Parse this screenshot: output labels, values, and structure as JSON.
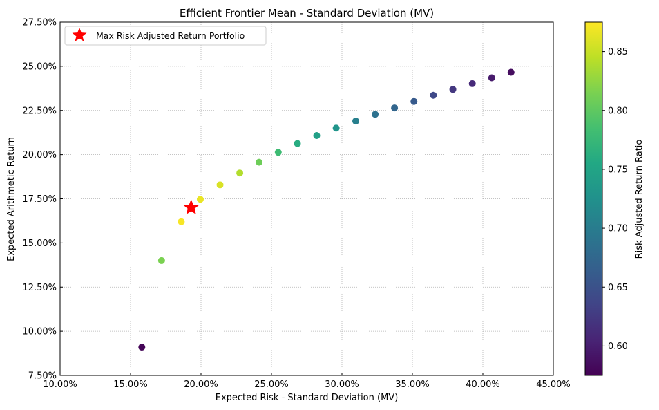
{
  "chart_data": {
    "type": "scatter",
    "title": "Efficient Frontier Mean - Standard Deviation (MV)",
    "xlabel": "Expected Risk - Standard Deviation (MV)",
    "ylabel": "Expected Arithmetic Return",
    "xlim": [
      0.1,
      0.45
    ],
    "ylim": [
      0.075,
      0.275
    ],
    "x_ticks": [
      0.1,
      0.15,
      0.2,
      0.25,
      0.3,
      0.35,
      0.4,
      0.45
    ],
    "x_tick_labels": [
      "10.00%",
      "15.00%",
      "20.00%",
      "25.00%",
      "30.00%",
      "35.00%",
      "40.00%",
      "45.00%"
    ],
    "y_ticks": [
      0.075,
      0.1,
      0.125,
      0.15,
      0.175,
      0.2,
      0.225,
      0.25,
      0.275
    ],
    "y_tick_labels": [
      "7.50%",
      "10.00%",
      "12.50%",
      "15.00%",
      "17.50%",
      "20.00%",
      "22.50%",
      "25.00%",
      "27.50%"
    ],
    "grid": true,
    "legend_position": "top-left",
    "series": [
      {
        "x": [
          0.158,
          0.172,
          0.186,
          0.1995,
          0.2135,
          0.2275,
          0.2412,
          0.2548,
          0.2684,
          0.2821,
          0.2959,
          0.3098,
          0.3236,
          0.3373,
          0.3511,
          0.3649,
          0.3787,
          0.3925,
          0.4063,
          0.42
        ],
        "y": [
          0.091,
          0.14,
          0.162,
          0.1747,
          0.1829,
          0.1896,
          0.1957,
          0.2013,
          0.2063,
          0.2108,
          0.215,
          0.219,
          0.2228,
          0.2264,
          0.2301,
          0.2336,
          0.2369,
          0.2402,
          0.2435,
          0.2466
        ],
        "color_values": [
          0.578,
          0.815,
          0.872,
          0.866,
          0.858,
          0.84,
          0.808,
          0.78,
          0.76,
          0.745,
          0.73,
          0.704,
          0.687,
          0.673,
          0.659,
          0.64,
          0.624,
          0.611,
          0.597,
          0.585
        ]
      }
    ],
    "highlight": {
      "label": "Max Risk Adjusted Return Portfolio",
      "x": 0.193,
      "y": 0.17,
      "marker": "star",
      "color": "#ff0000"
    },
    "colorbar": {
      "label": "Risk Adjusted Return Ratio",
      "colormap": "viridis",
      "range": [
        0.575,
        0.875
      ],
      "ticks": [
        0.6,
        0.65,
        0.7,
        0.75,
        0.8,
        0.85
      ],
      "tick_labels": [
        "0.60",
        "0.65",
        "0.70",
        "0.75",
        "0.80",
        "0.85"
      ]
    }
  }
}
